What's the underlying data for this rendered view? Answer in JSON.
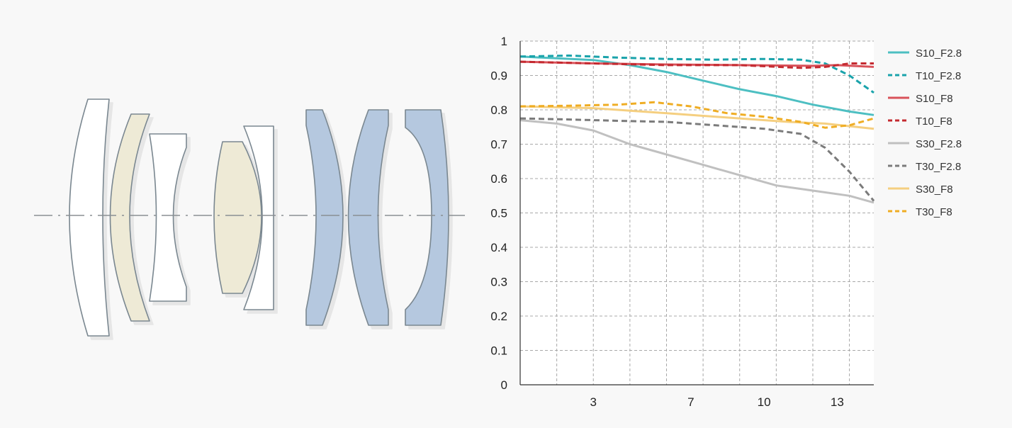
{
  "lens_diagram": {
    "element_colors": {
      "clear": "#ffffff",
      "low_dispersion": "#eeead6",
      "aspherical": "#b5c8df",
      "outline": "#7a8790",
      "axis": "#8a8f94"
    },
    "elements": [
      {
        "type": "clear"
      },
      {
        "type": "low_dispersion"
      },
      {
        "type": "clear"
      },
      {
        "type": "low_dispersion"
      },
      {
        "type": "clear"
      },
      {
        "type": "aspherical"
      },
      {
        "type": "aspherical"
      },
      {
        "type": "aspherical"
      }
    ]
  },
  "chart_data": {
    "type": "line",
    "title": "",
    "xlabel": "",
    "ylabel": "",
    "xlim": [
      0,
      14.5
    ],
    "ylim": [
      0,
      1
    ],
    "x_ticks": [
      3,
      7,
      10,
      13
    ],
    "x_tick_labels": [
      "3",
      "7",
      "10",
      "13"
    ],
    "y_ticks": [
      0,
      0.1,
      0.2,
      0.3,
      0.4,
      0.5,
      0.6,
      0.7,
      0.8,
      0.9,
      1
    ],
    "y_tick_labels": [
      "0",
      "0.1",
      "0.2",
      "0.3",
      "0.4",
      "0.5",
      "0.6",
      "0.7",
      "0.8",
      "0.9",
      "1"
    ],
    "grid": true,
    "legend": "right",
    "series": [
      {
        "name": "S10_F2.8",
        "color": "#4dbfc2",
        "dashed": false,
        "points": [
          [
            0,
            0.955
          ],
          [
            1.5,
            0.95
          ],
          [
            3,
            0.945
          ],
          [
            4.5,
            0.93
          ],
          [
            6,
            0.91
          ],
          [
            7.5,
            0.885
          ],
          [
            9,
            0.86
          ],
          [
            10.5,
            0.84
          ],
          [
            12,
            0.815
          ],
          [
            13.5,
            0.795
          ],
          [
            14.5,
            0.785
          ]
        ]
      },
      {
        "name": "T10_F2.8",
        "color": "#1aa3ab",
        "dashed": true,
        "points": [
          [
            0,
            0.955
          ],
          [
            2,
            0.958
          ],
          [
            4,
            0.952
          ],
          [
            6,
            0.948
          ],
          [
            8,
            0.946
          ],
          [
            10,
            0.948
          ],
          [
            11.5,
            0.946
          ],
          [
            12.5,
            0.935
          ],
          [
            13.5,
            0.9
          ],
          [
            14.5,
            0.85
          ]
        ]
      },
      {
        "name": "S10_F8",
        "color": "#d9525a",
        "dashed": false,
        "points": [
          [
            0,
            0.94
          ],
          [
            3,
            0.935
          ],
          [
            6,
            0.932
          ],
          [
            9,
            0.93
          ],
          [
            12,
            0.928
          ],
          [
            13,
            0.93
          ],
          [
            14.5,
            0.925
          ]
        ]
      },
      {
        "name": "T10_F8",
        "color": "#c42a30",
        "dashed": true,
        "points": [
          [
            0,
            0.94
          ],
          [
            3,
            0.935
          ],
          [
            6,
            0.93
          ],
          [
            9,
            0.93
          ],
          [
            11.5,
            0.922
          ],
          [
            12.5,
            0.925
          ],
          [
            13.5,
            0.935
          ],
          [
            14.5,
            0.935
          ]
        ]
      },
      {
        "name": "S30_F2.8",
        "color": "#c0c0c0",
        "dashed": false,
        "points": [
          [
            0,
            0.77
          ],
          [
            1.5,
            0.76
          ],
          [
            3,
            0.74
          ],
          [
            4.5,
            0.7
          ],
          [
            6,
            0.67
          ],
          [
            7.5,
            0.64
          ],
          [
            9,
            0.61
          ],
          [
            10.5,
            0.58
          ],
          [
            12,
            0.565
          ],
          [
            13.5,
            0.55
          ],
          [
            14.5,
            0.53
          ]
        ]
      },
      {
        "name": "T30_F2.8",
        "color": "#7b7b7b",
        "dashed": true,
        "points": [
          [
            0,
            0.775
          ],
          [
            2,
            0.772
          ],
          [
            4,
            0.768
          ],
          [
            6,
            0.765
          ],
          [
            8,
            0.755
          ],
          [
            10,
            0.745
          ],
          [
            11.5,
            0.73
          ],
          [
            12.5,
            0.69
          ],
          [
            13.5,
            0.62
          ],
          [
            14.5,
            0.535
          ]
        ]
      },
      {
        "name": "S30_F8",
        "color": "#f5cf80",
        "dashed": false,
        "points": [
          [
            0,
            0.81
          ],
          [
            3,
            0.805
          ],
          [
            6,
            0.79
          ],
          [
            9,
            0.775
          ],
          [
            11,
            0.765
          ],
          [
            12.5,
            0.76
          ],
          [
            14.5,
            0.745
          ]
        ]
      },
      {
        "name": "T30_F8",
        "color": "#efad24",
        "dashed": true,
        "points": [
          [
            0,
            0.81
          ],
          [
            2,
            0.812
          ],
          [
            4,
            0.815
          ],
          [
            5.5,
            0.822
          ],
          [
            7,
            0.81
          ],
          [
            8.5,
            0.79
          ],
          [
            10,
            0.78
          ],
          [
            11.5,
            0.765
          ],
          [
            12.5,
            0.748
          ],
          [
            13.5,
            0.755
          ],
          [
            14.5,
            0.775
          ]
        ]
      }
    ]
  }
}
